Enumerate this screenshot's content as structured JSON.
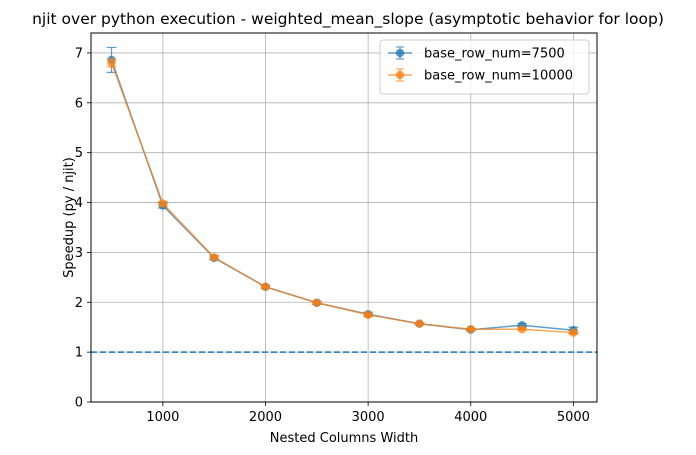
{
  "chart_data": {
    "type": "line",
    "title": "njit over python execution - weighted_mean_slope (asymptotic behavior for loop)",
    "xlabel": "Nested Columns Width",
    "ylabel": "Speedup (py / njit)",
    "xlim": [
      300,
      5230
    ],
    "ylim": [
      0,
      7.4
    ],
    "x_ticks": [
      1000,
      2000,
      3000,
      4000,
      5000
    ],
    "y_ticks": [
      0,
      1,
      2,
      3,
      4,
      5,
      6,
      7
    ],
    "grid": true,
    "legend_position": "top-right",
    "reference_line": {
      "y": 1,
      "style": "dashed",
      "color": "#1f77b4"
    },
    "x": [
      500,
      1000,
      1500,
      2000,
      2500,
      3000,
      3500,
      4000,
      4500,
      5000
    ],
    "series": [
      {
        "name": "base_row_num=7500",
        "color": "#1f77b4",
        "values": [
          6.86,
          3.94,
          2.89,
          2.31,
          1.99,
          1.76,
          1.57,
          1.45,
          1.54,
          1.44
        ],
        "errors": [
          0.25,
          0.05,
          0.04,
          0.03,
          0.03,
          0.04,
          0.02,
          0.02,
          0.03,
          0.06
        ]
      },
      {
        "name": "base_row_num=10000",
        "color": "#ff7f0e",
        "values": [
          6.8,
          3.98,
          2.9,
          2.31,
          1.99,
          1.75,
          1.57,
          1.46,
          1.46,
          1.39
        ],
        "errors": [
          0.08,
          0.04,
          0.03,
          0.02,
          0.02,
          0.03,
          0.02,
          0.02,
          0.02,
          0.03
        ]
      }
    ]
  }
}
